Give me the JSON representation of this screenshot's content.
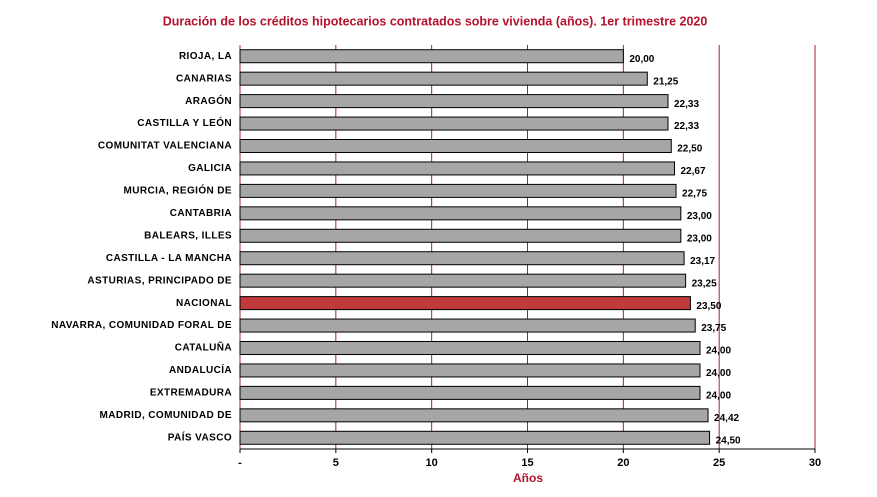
{
  "chart_data": {
    "type": "bar",
    "orientation": "horizontal",
    "title": "Duración de los créditos hipotecarios contratados sobre vivienda (años). 1er trimestre 2020",
    "xlabel": "Años",
    "categories": [
      "RIOJA, LA",
      "CANARIAS",
      "ARAGÓN",
      "CASTILLA Y LEÓN",
      "COMUNITAT VALENCIANA",
      "GALICIA",
      "MURCIA, REGIÓN DE",
      "CANTABRIA",
      "BALEARS, ILLES",
      "CASTILLA - LA MANCHA",
      "ASTURIAS, PRINCIPADO DE",
      "NACIONAL",
      "NAVARRA, COMUNIDAD FORAL DE",
      "CATALUÑA",
      "ANDALUCÍA",
      "EXTREMADURA",
      "MADRID, COMUNIDAD DE",
      "PAÍS VASCO"
    ],
    "values": [
      20.0,
      21.25,
      22.33,
      22.33,
      22.5,
      22.67,
      22.75,
      23.0,
      23.0,
      23.17,
      23.25,
      23.5,
      23.75,
      24.0,
      24.0,
      24.0,
      24.42,
      24.5
    ],
    "value_labels": [
      "20,00",
      "21,25",
      "22,33",
      "22,33",
      "22,50",
      "22,67",
      "22,75",
      "23,00",
      "23,00",
      "23,17",
      "23,25",
      "23,50",
      "23,75",
      "24,00",
      "24,00",
      "24,00",
      "24,42",
      "24,50"
    ],
    "colors": [
      "#a6a6a6",
      "#a6a6a6",
      "#a6a6a6",
      "#a6a6a6",
      "#a6a6a6",
      "#a6a6a6",
      "#a6a6a6",
      "#a6a6a6",
      "#a6a6a6",
      "#a6a6a6",
      "#a6a6a6",
      "#c0393b",
      "#a6a6a6",
      "#a6a6a6",
      "#a6a6a6",
      "#a6a6a6",
      "#a6a6a6",
      "#a6a6a6"
    ],
    "xlim": [
      0,
      30
    ],
    "xticks": [
      {
        "value": 0,
        "label": "-"
      },
      5,
      10,
      15,
      20,
      25,
      30
    ],
    "grid": true,
    "grid_color": "#a0262e",
    "title_color": "#b5122e"
  }
}
